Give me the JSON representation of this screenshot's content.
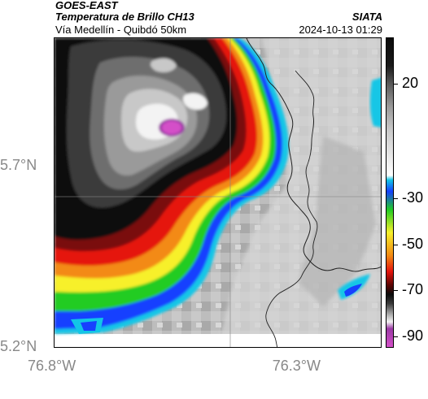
{
  "header": {
    "title": "GOES-EAST",
    "subtitle": "Temperatura de Brillo CH13",
    "region": "Vía Medellín - Quibdó 50km",
    "org": "SIATA",
    "datetime": "2024-10-13 01:29"
  },
  "axes": {
    "y_ticks": [
      {
        "label": "5.7°N",
        "value": 5.7
      },
      {
        "label": "5.2°N",
        "value": 5.2
      }
    ],
    "x_ticks": [
      {
        "label": "76.8°W",
        "value": -76.8
      },
      {
        "label": "76.3°W",
        "value": -76.3
      }
    ]
  },
  "colorbar": {
    "ticks": [
      {
        "label": "20",
        "value": 20
      },
      {
        "label": "-30",
        "value": -30
      },
      {
        "label": "-50",
        "value": -50
      },
      {
        "label": "-70",
        "value": -70
      },
      {
        "label": "-90",
        "value": -90
      }
    ],
    "range": [
      -95,
      40
    ],
    "colors": {
      "magenta": "#d44fc8",
      "violet": "#9b3aa5",
      "white": "#f3f3f3",
      "gray_light": "#c8c8c8",
      "gray_mid": "#9a9a9a",
      "dark": "#3a3a3a",
      "black": "#0b0b0b",
      "red": "#e5140d",
      "orange": "#f38a12",
      "yellow": "#f7f02b",
      "green": "#22cc22",
      "blue": "#1740ff",
      "cyan": "#12c6e6"
    }
  }
}
